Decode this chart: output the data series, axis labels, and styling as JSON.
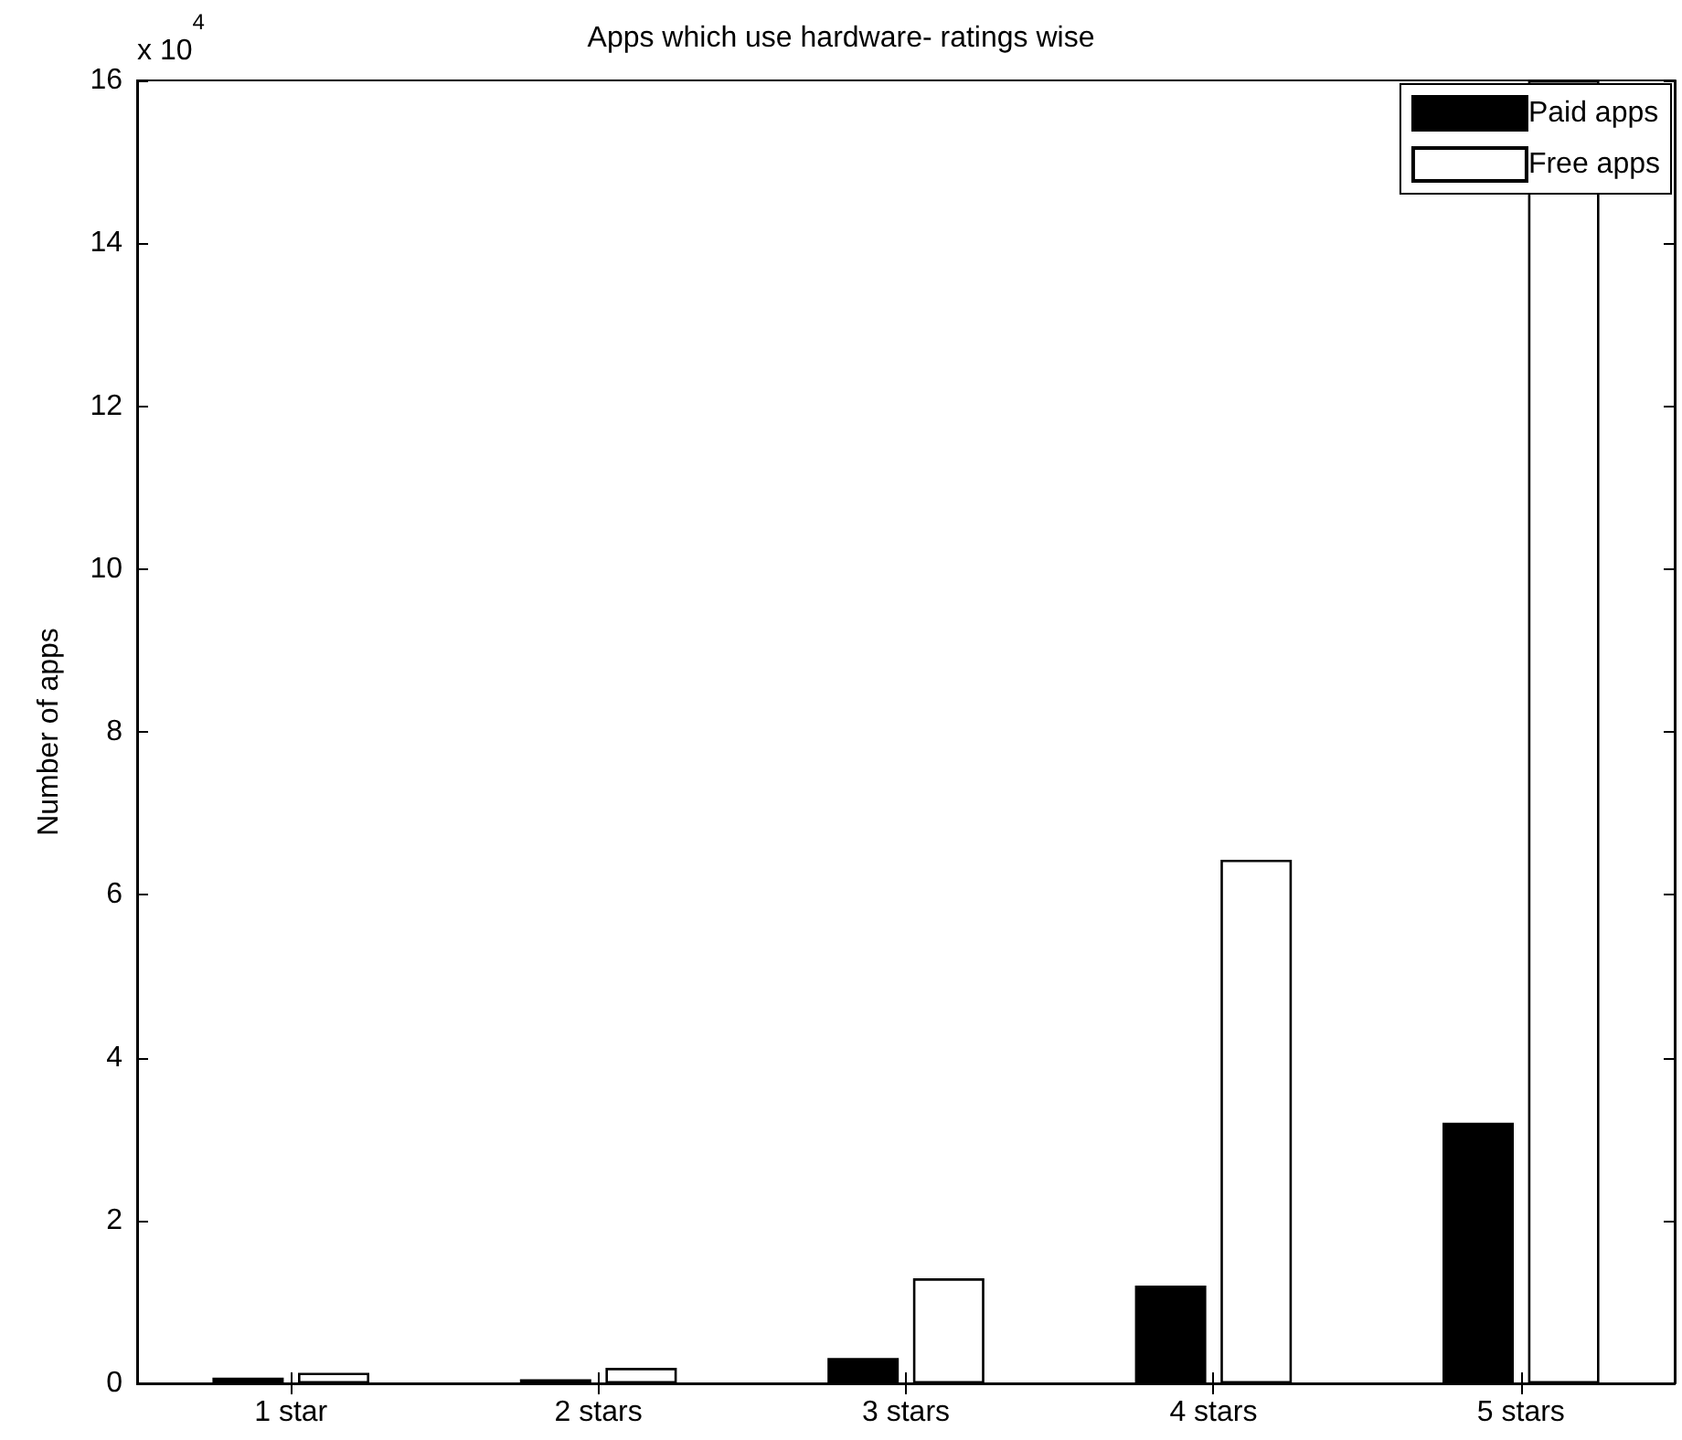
{
  "chart_data": {
    "type": "bar",
    "title": "Apps which use hardware- ratings wise",
    "ylabel": "Number of apps",
    "annotations": [
      "x 10$^{4}$"
    ],
    "categories": [
      "1 star",
      "2 stars",
      "3 stars",
      "4 stars",
      "5 stars"
    ],
    "series": [
      {
        "name": "Paid apps",
        "color": "#000000",
        "values": [
          0.07,
          0.05,
          0.31,
          1.2,
          3.2
        ]
      },
      {
        "name": "Free apps",
        "color": "#ffffff",
        "values": [
          0.13,
          0.19,
          1.29,
          6.43,
          16
        ]
      }
    ],
    "ylim": [
      0,
      16
    ],
    "yticks": [
      0,
      2,
      4,
      6,
      8,
      10,
      12,
      14,
      16
    ],
    "grid": false,
    "legend": "top right"
  }
}
